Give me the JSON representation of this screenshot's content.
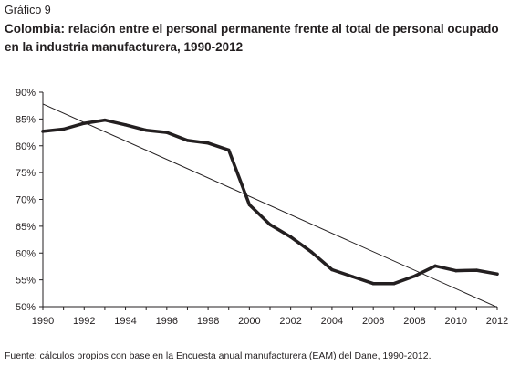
{
  "figure_label": "Gráfico 9",
  "title": "Colombia: relación entre el personal permanente frente al total de personal ocupado en la industria manufacturera, 1990-2012",
  "source": "Fuente: cálculos propios con base en la Encuesta anual manufacturera (EAM) del Dane, 1990-2012.",
  "chart_data": {
    "type": "line",
    "x": [
      1990,
      1991,
      1992,
      1993,
      1994,
      1995,
      1996,
      1997,
      1998,
      1999,
      2000,
      2001,
      2002,
      2003,
      2004,
      2005,
      2006,
      2007,
      2008,
      2009,
      2010,
      2011,
      2012
    ],
    "series": [
      {
        "values": [
          82.7,
          83.1,
          84.2,
          84.8,
          83.9,
          82.9,
          82.5,
          81.0,
          80.5,
          79.2,
          69.0,
          65.3,
          63.0,
          60.2,
          56.9,
          55.6,
          54.3,
          54.3,
          55.7,
          57.6,
          56.7,
          56.8,
          56.1
        ]
      }
    ],
    "trend": {
      "x": [
        1990,
        2012
      ],
      "values": [
        87.8,
        49.9
      ]
    },
    "xlim": [
      1990,
      2012
    ],
    "ylim": [
      50,
      90
    ],
    "xticks": [
      1990,
      1992,
      1994,
      1996,
      1998,
      2000,
      2002,
      2004,
      2006,
      2008,
      2010,
      2012
    ],
    "yticks": [
      "90%",
      "85%",
      "80%",
      "75%",
      "70%",
      "65%",
      "60%",
      "55%",
      "50%"
    ],
    "xlabel": "",
    "ylabel": "",
    "grid": false,
    "colors": {
      "series": "#231f20",
      "trend": "#231f20",
      "axis": "#231f20"
    }
  }
}
